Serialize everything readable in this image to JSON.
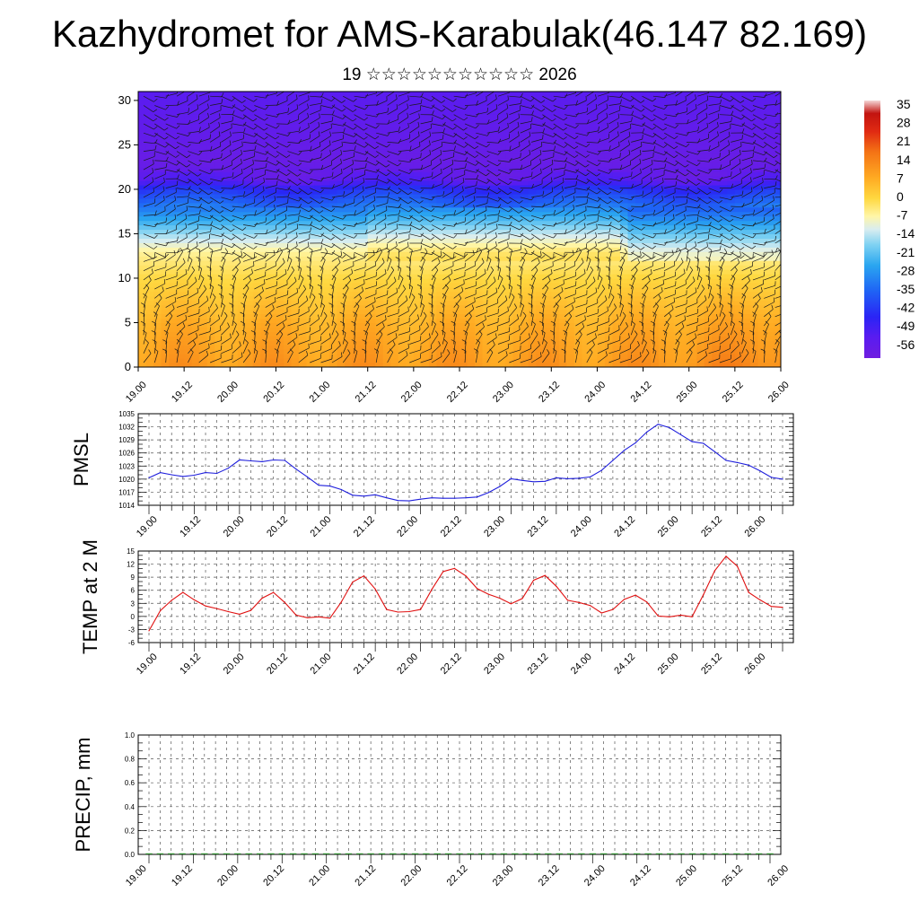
{
  "title": "Kazhydromet for AMS-Karabulak(46.147 82.169)",
  "subtitle": "19 ☆☆☆☆☆☆☆☆☆☆☆ 2026",
  "time_ticks": [
    "19.00",
    "19.12",
    "20.00",
    "20.12",
    "21.00",
    "21.12",
    "22.00",
    "22.12",
    "23.00",
    "23.12",
    "24.00",
    "24.12",
    "25.00",
    "25.12",
    "26.00"
  ],
  "chart_data": [
    {
      "type": "heatmap",
      "name": "temperature-cross-section",
      "title": "Kazhydromet for AMS-Karabulak(46.147 82.169)",
      "xlabel": "",
      "ylabel": "",
      "y_ticks": [
        0,
        5,
        10,
        15,
        20,
        25,
        30
      ],
      "ylim": [
        0,
        31
      ],
      "colorbar_labels": [
        "35",
        "28",
        "21",
        "14",
        "7",
        "0",
        "-7",
        "-14",
        "-21",
        "-28",
        "-35",
        "-42",
        "-49",
        "-56"
      ],
      "colorbar_range": [
        -60,
        38
      ],
      "level_profile": [
        {
          "level": 0,
          "value": 10
        },
        {
          "level": 5,
          "value": 6
        },
        {
          "level": 10,
          "value": 0
        },
        {
          "level": 13,
          "value": -6
        },
        {
          "level": 15,
          "value": -16
        },
        {
          "level": 17,
          "value": -28
        },
        {
          "level": 20,
          "value": -44
        },
        {
          "level": 21,
          "value": -54
        },
        {
          "level": 23,
          "value": -58
        },
        {
          "level": 27,
          "value": -56
        },
        {
          "level": 31,
          "value": -54
        }
      ],
      "wind_barbs": true
    },
    {
      "type": "line",
      "name": "pmsl",
      "ylabel": "PMSL",
      "ylim": [
        1014,
        1035
      ],
      "y_ticks": [
        1014,
        1017,
        1020,
        1023,
        1026,
        1029,
        1032,
        1035
      ],
      "grid": true,
      "color": "#1f1fdc",
      "x": [
        0,
        3,
        6,
        9,
        12,
        15,
        18,
        21,
        24,
        27,
        30,
        33,
        36,
        39,
        42,
        45,
        48,
        51,
        54,
        57,
        60,
        63,
        66,
        69,
        72,
        75,
        78,
        81,
        84,
        87,
        90,
        93,
        96,
        99,
        102,
        105,
        108,
        111,
        114,
        117,
        120,
        123,
        126,
        129,
        132,
        135,
        138,
        141,
        144,
        147,
        150,
        153,
        156,
        159,
        162,
        165,
        168
      ],
      "values": [
        1020.3,
        1021.5,
        1021.0,
        1020.6,
        1020.9,
        1021.5,
        1021.3,
        1022.5,
        1024.4,
        1024.2,
        1024.0,
        1024.4,
        1024.3,
        1022.3,
        1020.5,
        1018.6,
        1018.4,
        1017.6,
        1016.3,
        1016.1,
        1016.4,
        1015.7,
        1015.1,
        1015.0,
        1015.4,
        1015.7,
        1015.6,
        1015.6,
        1015.7,
        1015.9,
        1016.9,
        1018.3,
        1020.1,
        1019.7,
        1019.4,
        1019.5,
        1020.3,
        1020.1,
        1020.2,
        1020.5,
        1022.0,
        1024.3,
        1026.6,
        1028.3,
        1030.8,
        1032.6,
        1031.8,
        1030.2,
        1028.6,
        1028.2,
        1026.3,
        1024.3,
        1023.8,
        1023.2,
        1021.9,
        1020.4,
        1020.0
      ]
    },
    {
      "type": "line",
      "name": "temp-2m",
      "ylabel": "TEMP at 2 M",
      "ylim": [
        -6,
        15
      ],
      "y_ticks": [
        -6,
        -3,
        0,
        3,
        6,
        9,
        12,
        15
      ],
      "grid": true,
      "color": "#e01010",
      "x": [
        0,
        3,
        6,
        9,
        12,
        15,
        18,
        21,
        24,
        27,
        30,
        33,
        36,
        39,
        42,
        45,
        48,
        51,
        54,
        57,
        60,
        63,
        66,
        69,
        72,
        75,
        78,
        81,
        84,
        87,
        90,
        93,
        96,
        99,
        102,
        105,
        108,
        111,
        114,
        117,
        120,
        123,
        126,
        129,
        132,
        135,
        138,
        141,
        144,
        147,
        150,
        153,
        156,
        159,
        162,
        165,
        168
      ],
      "values": [
        -3.3,
        1.3,
        3.7,
        5.5,
        3.8,
        2.4,
        1.8,
        1.1,
        0.5,
        1.4,
        4.2,
        5.5,
        3.2,
        0.3,
        -0.3,
        -0.1,
        -0.4,
        3.3,
        7.9,
        9.3,
        6.3,
        1.6,
        1.0,
        1.1,
        1.6,
        6.2,
        10.3,
        11.0,
        9.3,
        6.4,
        5.1,
        4.2,
        2.9,
        4.1,
        8.3,
        9.4,
        6.9,
        3.7,
        3.2,
        2.5,
        0.8,
        1.6,
        3.9,
        4.9,
        3.3,
        0.1,
        -0.1,
        0.3,
        -0.1,
        5.0,
        10.5,
        13.8,
        11.5,
        5.5,
        3.8,
        2.3,
        2.1
      ]
    },
    {
      "type": "bar",
      "name": "precip",
      "ylabel": "PRECIP, mm",
      "ylim": [
        0,
        1.0
      ],
      "y_ticks": [
        "0.0",
        "0.2",
        "0.4",
        "0.6",
        "0.8",
        "1.0"
      ],
      "grid": true,
      "color": "#2e8b2e",
      "x": [
        0,
        3,
        6,
        9,
        12,
        15,
        18,
        21,
        24,
        27,
        30,
        33,
        36,
        39,
        42,
        45,
        48,
        51,
        54,
        57,
        60,
        63,
        66,
        69,
        72,
        75,
        78,
        81,
        84,
        87,
        90,
        93,
        96,
        99,
        102,
        105,
        108,
        111,
        114,
        117,
        120,
        123,
        126,
        129,
        132,
        135,
        138,
        141,
        144,
        147,
        150,
        153,
        156,
        159,
        162,
        165,
        168
      ],
      "values": [
        0,
        0,
        0,
        0,
        0,
        0,
        0,
        0,
        0,
        0,
        0,
        0,
        0,
        0,
        0,
        0,
        0,
        0,
        0,
        0,
        0,
        0,
        0,
        0,
        0,
        0,
        0,
        0,
        0,
        0,
        0,
        0,
        0,
        0,
        0,
        0,
        0,
        0,
        0,
        0,
        0,
        0,
        0,
        0,
        0,
        0,
        0,
        0,
        0,
        0,
        0,
        0,
        0,
        0,
        0,
        0,
        0
      ]
    }
  ]
}
